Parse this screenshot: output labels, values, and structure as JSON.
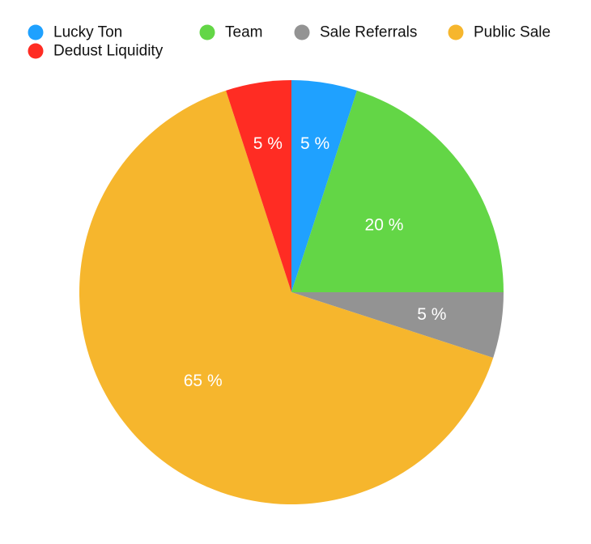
{
  "chart_data": {
    "type": "pie",
    "title": "",
    "legend_position": "top-left",
    "categories": [
      "Lucky Ton",
      "Team",
      "Sale Referrals",
      "Public Sale",
      "Dedust Liquidity"
    ],
    "values": [
      5,
      20,
      5,
      65,
      5
    ],
    "value_labels": [
      "5 %",
      "20 %",
      "5 %",
      "65 %",
      "5 %"
    ],
    "colors": [
      "#1fa1ff",
      "#63d646",
      "#939393",
      "#f6b62d",
      "#ff2c23"
    ],
    "start_angle": "12 o'clock",
    "direction": "clockwise"
  }
}
